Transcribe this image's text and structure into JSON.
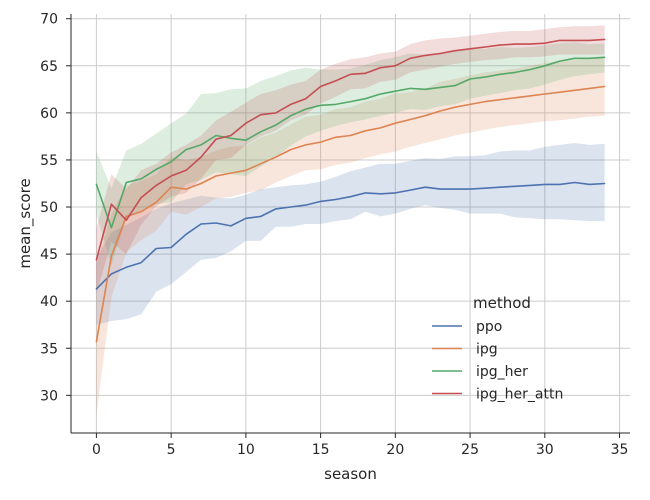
{
  "chart_data": {
    "type": "line",
    "xlabel": "season",
    "ylabel": "mean_score",
    "xlim": [
      -1.7,
      35.7
    ],
    "ylim": [
      26,
      70.5
    ],
    "xticks": [
      0,
      5,
      10,
      15,
      20,
      25,
      30,
      35
    ],
    "yticks": [
      30,
      35,
      40,
      45,
      50,
      55,
      60,
      65,
      70
    ],
    "grid": true,
    "legend_title": "method",
    "legend_position": "center-right",
    "x": [
      0,
      1,
      2,
      3,
      4,
      5,
      6,
      7,
      8,
      9,
      10,
      11,
      12,
      13,
      14,
      15,
      16,
      17,
      18,
      19,
      20,
      21,
      22,
      23,
      24,
      25,
      26,
      27,
      28,
      29,
      30,
      31,
      32,
      33,
      34
    ],
    "series": [
      {
        "name": "ppo",
        "color": "#4c72b0",
        "values": [
          41.3,
          42.9,
          43.6,
          44.1,
          45.6,
          45.7,
          47.1,
          48.2,
          48.3,
          48.0,
          48.8,
          49.0,
          49.8,
          50.0,
          50.2,
          50.6,
          50.8,
          51.1,
          51.5,
          51.4,
          51.5,
          51.8,
          52.1,
          51.9,
          51.9,
          51.9,
          52.0,
          52.1,
          52.2,
          52.3,
          52.4,
          52.4,
          52.6,
          52.4,
          52.5
        ],
        "lower": [
          37.5,
          37.9,
          38.1,
          38.6,
          41.0,
          41.8,
          43.1,
          44.4,
          44.6,
          45.3,
          46.4,
          46.4,
          47.9,
          47.9,
          48.2,
          48.2,
          48.5,
          48.7,
          49.5,
          49.0,
          49.3,
          49.8,
          50.2,
          49.9,
          49.7,
          49.3,
          49.3,
          49.3,
          48.9,
          48.8,
          48.7,
          48.7,
          48.6,
          48.5,
          48.5
        ],
        "upper": [
          44.6,
          47.3,
          48.1,
          48.9,
          49.8,
          50.4,
          50.8,
          51.2,
          51.0,
          50.9,
          51.3,
          51.9,
          52.1,
          52.3,
          52.4,
          52.7,
          53.2,
          53.8,
          54.2,
          54.6,
          54.6,
          54.9,
          55.2,
          55.1,
          55.4,
          55.4,
          55.5,
          55.9,
          56.0,
          56.0,
          56.4,
          56.6,
          56.8,
          56.6,
          56.7
        ]
      },
      {
        "name": "ipg",
        "color": "#dd8452",
        "values": [
          35.7,
          44.8,
          49.0,
          49.5,
          50.5,
          52.1,
          51.9,
          52.5,
          53.3,
          53.6,
          53.9,
          54.6,
          55.3,
          56.1,
          56.6,
          56.9,
          57.4,
          57.6,
          58.1,
          58.4,
          58.9,
          59.3,
          59.7,
          60.2,
          60.6,
          60.9,
          61.2,
          61.4,
          61.6,
          61.8,
          62.0,
          62.2,
          62.4,
          62.6,
          62.8
        ],
        "lower": [
          28.0,
          40.4,
          45.2,
          46.5,
          47.5,
          49.5,
          49.2,
          50.0,
          50.9,
          51.1,
          51.5,
          51.8,
          52.6,
          53.3,
          53.9,
          54.0,
          54.5,
          54.7,
          55.2,
          55.6,
          55.9,
          56.4,
          56.8,
          57.2,
          57.6,
          57.9,
          58.2,
          58.5,
          58.7,
          58.9,
          59.1,
          59.2,
          59.4,
          59.6,
          59.7
        ],
        "upper": [
          44.0,
          49.2,
          52.3,
          52.8,
          53.5,
          55.3,
          55.0,
          55.3,
          56.0,
          56.4,
          56.5,
          57.4,
          57.9,
          58.8,
          59.6,
          59.8,
          60.4,
          60.6,
          61.2,
          61.5,
          62.1,
          62.2,
          62.6,
          63.3,
          63.6,
          64.0,
          64.3,
          64.5,
          64.7,
          65.0,
          65.3,
          65.5,
          65.6,
          65.8,
          66.0
        ]
      },
      {
        "name": "ipg_her",
        "color": "#55a868",
        "values": [
          52.4,
          47.8,
          52.6,
          53.0,
          54.0,
          54.8,
          56.1,
          56.6,
          57.6,
          57.3,
          57.1,
          58.0,
          58.7,
          59.7,
          60.4,
          60.8,
          60.9,
          61.2,
          61.5,
          62.0,
          62.3,
          62.6,
          62.5,
          62.7,
          62.9,
          63.6,
          63.8,
          64.1,
          64.3,
          64.6,
          65.0,
          65.5,
          65.8,
          65.8,
          65.9
        ],
        "lower": [
          49.2,
          43.8,
          48.8,
          49.5,
          50.3,
          50.5,
          52.4,
          52.9,
          53.7,
          53.5,
          53.3,
          54.3,
          55.3,
          56.5,
          57.5,
          58.1,
          58.6,
          59.0,
          59.3,
          59.7,
          60.0,
          60.4,
          60.3,
          60.7,
          60.9,
          61.5,
          61.8,
          62.1,
          62.4,
          62.6,
          63.0,
          63.5,
          63.9,
          64.1,
          64.3
        ],
        "upper": [
          55.9,
          52.0,
          56.0,
          56.7,
          57.8,
          58.9,
          59.9,
          62.0,
          62.1,
          62.5,
          62.6,
          63.4,
          63.9,
          64.5,
          64.8,
          64.6,
          64.6,
          64.7,
          65.1,
          65.6,
          65.9,
          66.3,
          66.2,
          66.4,
          66.6,
          66.8,
          66.8,
          67.0,
          66.9,
          67.0,
          67.2,
          67.4,
          67.5,
          67.3,
          67.4
        ]
      },
      {
        "name": "ipg_her_attn",
        "color": "#c44e52",
        "values": [
          44.4,
          50.3,
          48.6,
          51.0,
          52.3,
          53.3,
          53.9,
          55.3,
          57.2,
          57.6,
          58.9,
          59.8,
          60.0,
          60.9,
          61.5,
          62.8,
          63.4,
          64.1,
          64.2,
          64.8,
          65.0,
          65.8,
          66.1,
          66.3,
          66.6,
          66.8,
          67.0,
          67.2,
          67.3,
          67.3,
          67.4,
          67.7,
          67.7,
          67.7,
          67.8
        ],
        "lower": [
          40.8,
          46.3,
          45.0,
          48.1,
          50.1,
          51.1,
          51.5,
          53.0,
          55.0,
          55.2,
          56.6,
          57.5,
          58.1,
          59.2,
          59.8,
          61.0,
          61.7,
          62.5,
          62.6,
          63.3,
          63.5,
          64.3,
          64.6,
          64.9,
          65.2,
          65.4,
          65.6,
          65.7,
          65.9,
          65.9,
          66.0,
          66.2,
          66.2,
          66.2,
          66.2
        ],
        "upper": [
          47.8,
          53.5,
          51.9,
          53.9,
          54.6,
          55.8,
          56.6,
          57.6,
          59.2,
          60.1,
          61.1,
          62.0,
          62.4,
          63.0,
          63.4,
          64.6,
          65.2,
          65.7,
          65.9,
          66.3,
          66.5,
          67.3,
          67.7,
          67.9,
          68.0,
          68.2,
          68.4,
          68.6,
          68.7,
          68.7,
          68.9,
          69.1,
          69.2,
          69.2,
          69.3
        ]
      }
    ]
  }
}
